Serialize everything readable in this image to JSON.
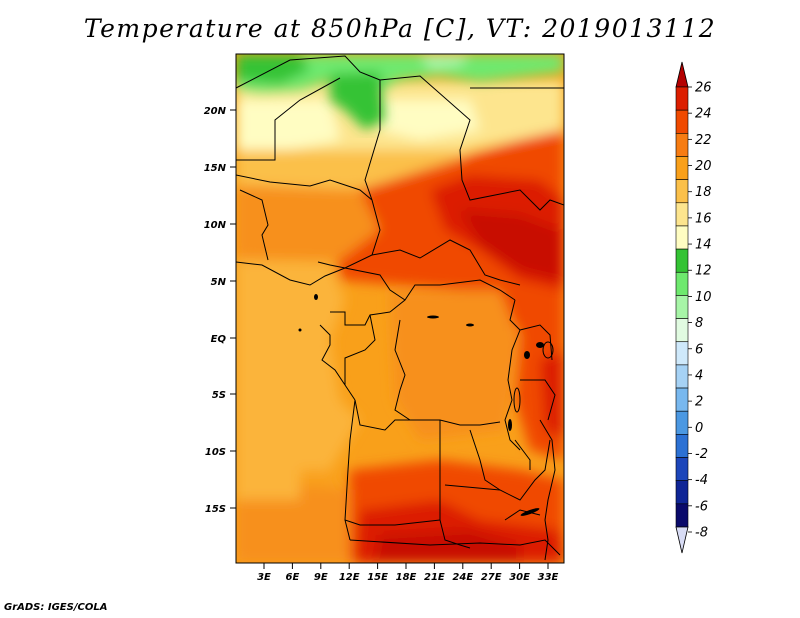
{
  "title": "Temperature at 850hPa [C], VT: 2019013112",
  "credit": "GrADS: IGES/COLA",
  "map": {
    "type": "filled-contour map",
    "lat_labels": [
      "20N",
      "15N",
      "10N",
      "5N",
      "EQ",
      "5S",
      "10S",
      "15S"
    ],
    "lon_labels": [
      "3E",
      "6E",
      "9E",
      "12E",
      "15E",
      "18E",
      "21E",
      "24E",
      "27E",
      "30E",
      "33E"
    ]
  },
  "colorbar": {
    "labels": [
      "26",
      "24",
      "22",
      "20",
      "18",
      "16",
      "14",
      "12",
      "10",
      "8",
      "6",
      "4",
      "2",
      "0",
      "-2",
      "-4",
      "-6",
      "-8"
    ],
    "colors": [
      "#b40000",
      "#dc1e00",
      "#f04a00",
      "#f77c12",
      "#f9a01a",
      "#fbc04a",
      "#fde58e",
      "#fffdc2",
      "#34c334",
      "#6ee96e",
      "#a7f5a7",
      "#e1fbe1",
      "#cfe9fb",
      "#a6d2f5",
      "#78b8ef",
      "#4b98e2",
      "#2c71d4",
      "#1c46ba",
      "#0f2596",
      "#0a0a6b"
    ],
    "arrow_bottom_color": "#d8dcf5"
  }
}
